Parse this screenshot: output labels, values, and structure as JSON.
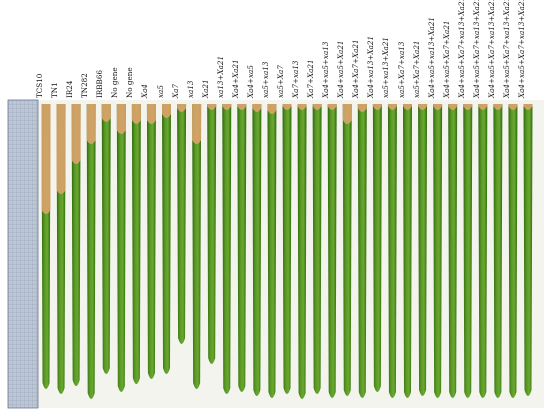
{
  "figure": {
    "labels": [
      "TCS10",
      "TN1",
      "IR24",
      "TN282",
      "IRBB66",
      "No gene",
      "No gene",
      "Xa4",
      "xa5",
      "Xa7",
      "xa13",
      "Xa21",
      "xa13+Xa21",
      "Xa4+Xa21",
      "Xa4+xa5",
      "xa5+xa13",
      "xa5+Xa7",
      "Xa7+xa13",
      "Xa7+Xa21",
      "Xa4+xa5+xa13",
      "Xa4+xa5+Xa21",
      "Xa4+Xa7+Xa21",
      "Xa4+xa13+Xa21",
      "xa5+xa13+Xa21",
      "xa5+Xa7+xa13",
      "xa5+Xa7+Xa21",
      "Xa4+xa5+xa13+Xa21",
      "Xa4+xa5+Xa7+Xa21",
      "Xa4+xa5+Xa7+xa13+Xa21",
      "Xa4+xa5+Xa7+xa13+Xa21",
      "Xa4+xa5+Xa7+xa13+Xa21",
      "Xa4+xa5+Xa7+xa13+Xa21",
      "Xa4+xa5+Xa7+xa13+Xa21"
    ],
    "colors": {
      "leaf_green": "#4f8a1f",
      "leaf_dark": "#2f6a10",
      "lesion": "#d8a36a",
      "ruler_bg": "#bcc6d6",
      "background": "#ffffff"
    }
  }
}
